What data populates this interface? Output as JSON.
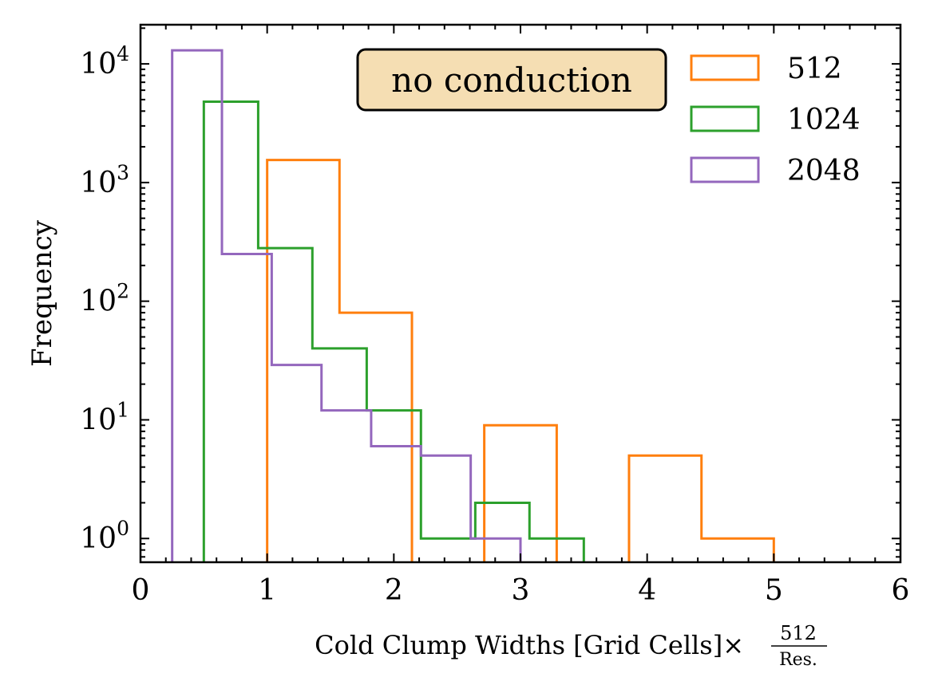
{
  "chart_data": {
    "type": "histogram",
    "title": "",
    "annotation": "no conduction",
    "xlabel": "Cold Clump Widths [Grid Cells]×",
    "xlabel_fraction": {
      "numerator": "512",
      "denominator": "Res."
    },
    "ylabel": "Frequency",
    "xlim": [
      0,
      6
    ],
    "ylim_log10": [
      -0.2,
      4.33
    ],
    "yscale": "log",
    "x_ticks": [
      "0",
      "1",
      "2",
      "3",
      "4",
      "5",
      "6"
    ],
    "y_ticks": [
      {
        "base": "10",
        "exp": "0",
        "value": 1
      },
      {
        "base": "10",
        "exp": "1",
        "value": 10
      },
      {
        "base": "10",
        "exp": "2",
        "value": 100
      },
      {
        "base": "10",
        "exp": "3",
        "value": 1000
      },
      {
        "base": "10",
        "exp": "4",
        "value": 10000
      }
    ],
    "grid": false,
    "legend": "top-right",
    "series": [
      {
        "name": "512",
        "color": "#ff7f0e",
        "bin_edges": [
          1.0,
          1.571,
          2.143,
          2.714,
          3.286,
          3.857,
          4.429,
          5.0
        ],
        "counts": [
          1550,
          80,
          0,
          9,
          0,
          5,
          1
        ]
      },
      {
        "name": "1024",
        "color": "#2ca02c",
        "bin_edges": [
          0.5,
          0.929,
          1.357,
          1.786,
          2.214,
          2.643,
          3.071,
          3.5
        ],
        "counts": [
          4800,
          280,
          40,
          12,
          1,
          2,
          1
        ]
      },
      {
        "name": "2048",
        "color": "#9467bd",
        "bin_edges": [
          0.25,
          0.643,
          1.036,
          1.429,
          1.821,
          2.214,
          2.607,
          3.0
        ],
        "counts": [
          13000,
          250,
          29,
          12,
          6,
          5,
          1
        ]
      }
    ]
  }
}
